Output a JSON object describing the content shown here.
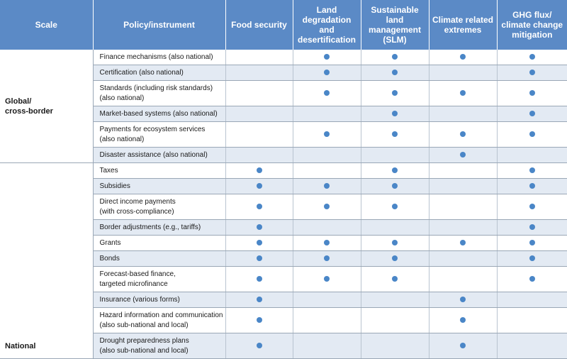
{
  "headers": [
    "Scale",
    "Policy/instrument",
    "Food security",
    "Land degradation and desertification",
    "Sustainable land management (SLM)",
    "Climate related extremes",
    "GHG flux/ climate change mitigation"
  ],
  "header_lines": [
    [
      "Scale"
    ],
    [
      "Policy/instrument"
    ],
    [
      "Food security"
    ],
    [
      "Land",
      "degradation",
      "and",
      "desertification"
    ],
    [
      "Sustainable",
      "land",
      "management",
      "(SLM)"
    ],
    [
      "Climate related",
      "extremes"
    ],
    [
      "GHG flux/",
      "climate change",
      "mitigation"
    ]
  ],
  "groups": [
    {
      "scale_lines": [
        "Global/",
        "cross-border"
      ],
      "rows": [
        {
          "lines": [
            "Finance mechanisms (also national)"
          ],
          "marks": [
            false,
            true,
            true,
            true,
            true
          ]
        },
        {
          "lines": [
            "Certification (also national)"
          ],
          "marks": [
            false,
            true,
            true,
            false,
            true
          ]
        },
        {
          "lines": [
            "Standards (including risk standards)",
            "(also national)"
          ],
          "marks": [
            false,
            true,
            true,
            true,
            true
          ]
        },
        {
          "lines": [
            "Market-based systems (also national)"
          ],
          "marks": [
            false,
            false,
            true,
            false,
            true
          ]
        },
        {
          "lines": [
            "Payments for ecosystem services",
            "(also national)"
          ],
          "marks": [
            false,
            true,
            true,
            true,
            true
          ]
        },
        {
          "lines": [
            "Disaster assistance (also national)"
          ],
          "marks": [
            false,
            false,
            false,
            true,
            false
          ]
        }
      ]
    },
    {
      "scale_lines": [
        "National"
      ],
      "rows": [
        {
          "lines": [
            "Taxes"
          ],
          "marks": [
            true,
            false,
            true,
            false,
            true
          ]
        },
        {
          "lines": [
            "Subsidies"
          ],
          "marks": [
            true,
            true,
            true,
            false,
            true
          ]
        },
        {
          "lines": [
            "Direct income payments",
            "(with cross-compliance)"
          ],
          "marks": [
            true,
            true,
            true,
            false,
            true
          ]
        },
        {
          "lines": [
            "Border adjustments (e.g., tariffs)"
          ],
          "marks": [
            true,
            false,
            false,
            false,
            true
          ]
        },
        {
          "lines": [
            "Grants"
          ],
          "marks": [
            true,
            true,
            true,
            true,
            true
          ]
        },
        {
          "lines": [
            "Bonds"
          ],
          "marks": [
            true,
            true,
            true,
            false,
            true
          ]
        },
        {
          "lines": [
            "Forecast-based finance,",
            "targeted microfinance"
          ],
          "marks": [
            true,
            true,
            true,
            false,
            true
          ]
        },
        {
          "lines": [
            "Insurance (various forms)"
          ],
          "marks": [
            true,
            false,
            false,
            true,
            false
          ]
        },
        {
          "lines": [
            "Hazard information and communication",
            "(also sub-national and local)"
          ],
          "marks": [
            true,
            false,
            false,
            true,
            false
          ]
        },
        {
          "lines": [
            "Drought preparedness plans",
            "(also sub-national and local)"
          ],
          "marks": [
            true,
            false,
            false,
            true,
            false
          ]
        }
      ]
    }
  ],
  "colors": {
    "header_bg": "#5b8ac6",
    "dot": "#4a86c7",
    "row_shade": "#e3eaf3"
  }
}
